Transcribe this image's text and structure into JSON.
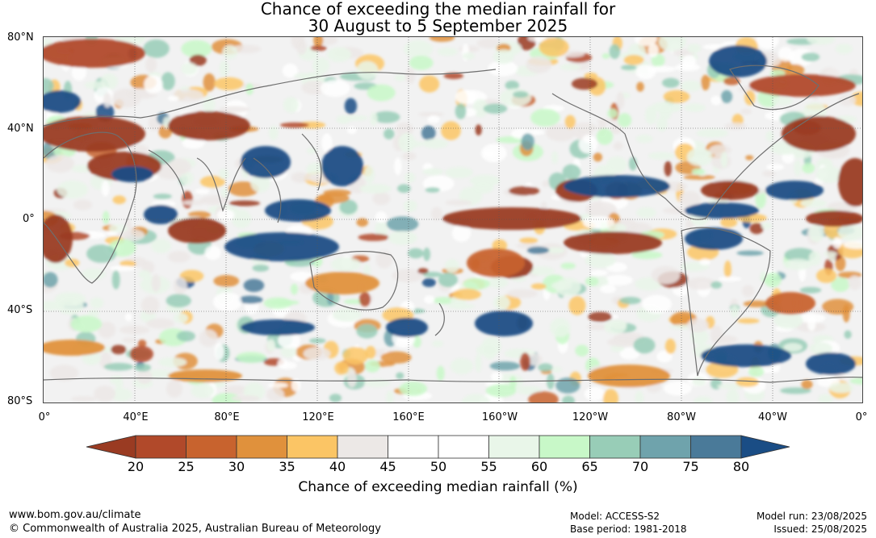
{
  "title": {
    "line1": "Chance of exceeding the median rainfall for",
    "line2": "30 August to 5 September 2025"
  },
  "axes": {
    "latitude_labels": [
      "80°N",
      "40°N",
      "0°",
      "40°S",
      "80°S"
    ],
    "longitude_labels": [
      "0°",
      "40°E",
      "80°E",
      "120°E",
      "160°E",
      "160°W",
      "120°W",
      "80°W",
      "40°W",
      "0°"
    ]
  },
  "legend": {
    "label": "Chance of exceeding median rainfall (%)",
    "ticks": [
      "20",
      "25",
      "30",
      "35",
      "40",
      "45",
      "50",
      "55",
      "60",
      "65",
      "70",
      "75",
      "80"
    ],
    "colors": [
      "#b1492a",
      "#c8632e",
      "#e0913c",
      "#fbc565",
      "#ece8e6",
      "#ffffff",
      "#ffffff",
      "#e9f6e9",
      "#c8f8c8",
      "#98cdb7",
      "#6fa3ac",
      "#4a7a99"
    ],
    "under_color": "#9a3b22",
    "over_color": "#1a4d85"
  },
  "footer": {
    "website": "www.bom.gov.au/climate",
    "copyright": "© Commonwealth of Australia 2025, Australian Bureau of Meteorology",
    "model": "Model: ACCESS-S2",
    "base_period": "Base period: 1981-2018",
    "model_run": "Model run: 23/08/2025",
    "issued": "Issued: 25/08/2025"
  }
}
